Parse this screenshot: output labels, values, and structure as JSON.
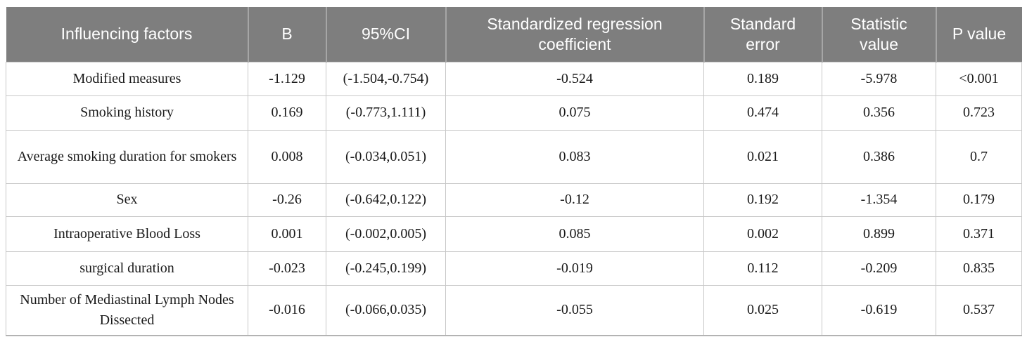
{
  "colors": {
    "header_bg": "#7e7e7e",
    "header_separator": "#a6a6a6",
    "header_text": "#ffffff",
    "cell_border": "#c8c8c8",
    "body_text": "#1a1a1a",
    "page_bg": "#ffffff"
  },
  "table": {
    "columns": [
      {
        "label": "Influencing factors"
      },
      {
        "label": "B"
      },
      {
        "label": "95%CI"
      },
      {
        "label": "Standardized regression coefficient"
      },
      {
        "label": "Standard error"
      },
      {
        "label": "Statistic value"
      },
      {
        "label": "P value"
      }
    ],
    "rows": [
      {
        "cells": [
          "Modified measures",
          "-1.129",
          "(-1.504,-0.754)",
          "-0.524",
          "0.189",
          "-5.978",
          "<0.001"
        ]
      },
      {
        "cells": [
          "Smoking history",
          "0.169",
          "(-0.773,1.111)",
          "0.075",
          "0.474",
          "0.356",
          "0.723"
        ]
      },
      {
        "cells": [
          "Average smoking duration for smokers",
          "0.008",
          "(-0.034,0.051)",
          "0.083",
          "0.021",
          "0.386",
          "0.7"
        ]
      },
      {
        "cells": [
          "Sex",
          "-0.26",
          "(-0.642,0.122)",
          "-0.12",
          "0.192",
          "-1.354",
          "0.179"
        ]
      },
      {
        "cells": [
          "Intraoperative Blood Loss",
          "0.001",
          "(-0.002,0.005)",
          "0.085",
          "0.002",
          "0.899",
          "0.371"
        ]
      },
      {
        "cells": [
          "surgical duration",
          "-0.023",
          "(-0.245,0.199)",
          "-0.019",
          "0.112",
          "-0.209",
          "0.835"
        ]
      },
      {
        "cells": [
          "Number of Mediastinal Lymph Nodes Dissected",
          "-0.016",
          "(-0.066,0.035)",
          "-0.055",
          "0.025",
          "-0.619",
          "0.537"
        ]
      }
    ]
  }
}
